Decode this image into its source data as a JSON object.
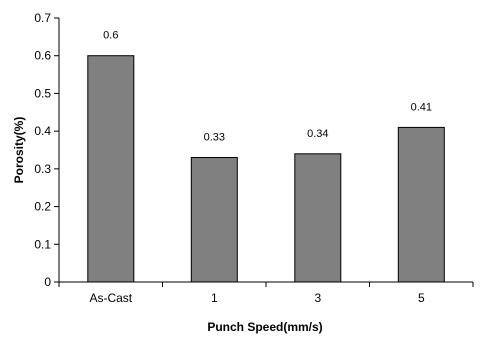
{
  "chart_data": {
    "type": "bar",
    "title": "",
    "xlabel": "Punch Speed(mm/s)",
    "ylabel": "Porosity(%)",
    "categories": [
      "As-Cast",
      "1",
      "3",
      "5"
    ],
    "values": [
      0.6,
      0.33,
      0.34,
      0.41
    ],
    "data_labels": [
      "0.6",
      "0.33",
      "0.34",
      "0.41"
    ],
    "ylim": [
      0,
      0.7
    ],
    "yticks": [
      "0",
      "0.1",
      "0.2",
      "0.3",
      "0.4",
      "0.5",
      "0.6",
      "0.7"
    ],
    "grid": false,
    "legend": "none",
    "bar_color": "#808080",
    "bar_edge_color": "#000000"
  }
}
